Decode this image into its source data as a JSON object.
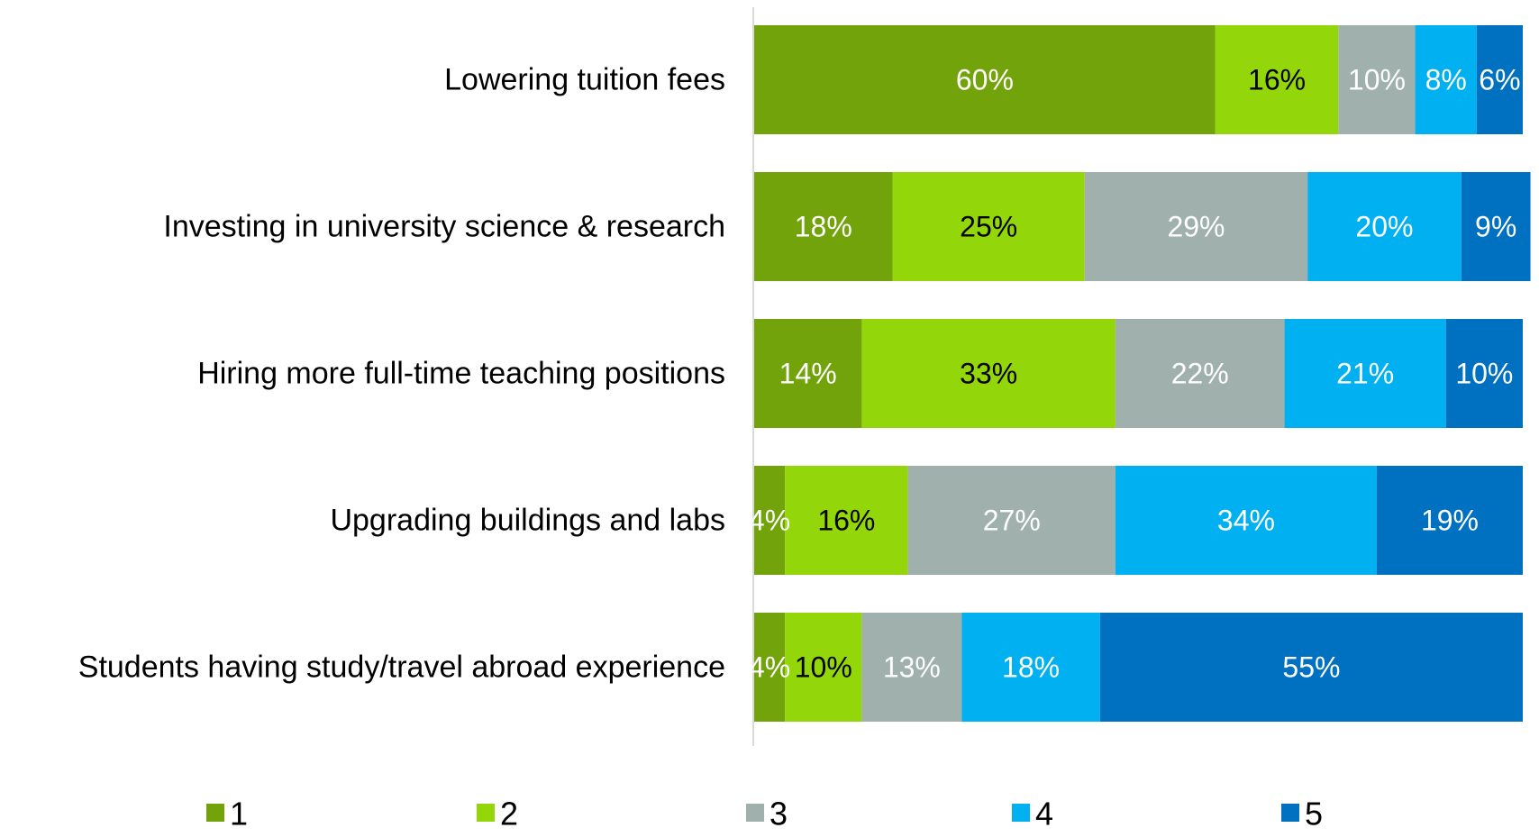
{
  "chart_data": {
    "type": "stacked_barh",
    "categories": [
      "Lowering tuition fees",
      "Investing in university science & research",
      "Hiring more full-time teaching positions",
      "Upgrading buildings and labs",
      "Students having study/travel abroad experience"
    ],
    "xlim": [
      0,
      100
    ],
    "legend": "bottom",
    "series": [
      {
        "name": "1",
        "color": "#72a30a",
        "label_color": "#ffffff",
        "values": [
          60,
          18,
          14,
          4,
          4
        ],
        "value_labels": [
          "60%",
          "18%",
          "14%",
          "4%",
          "4%"
        ]
      },
      {
        "name": "2",
        "color": "#93d60a",
        "label_color": "#000000",
        "values": [
          16,
          25,
          33,
          16,
          10
        ],
        "value_labels": [
          "16%",
          "25%",
          "33%",
          "16%",
          "10%"
        ]
      },
      {
        "name": "3",
        "color": "#9fb0ad",
        "label_color": "#ffffff",
        "values": [
          10,
          29,
          22,
          27,
          13
        ],
        "value_labels": [
          "10%",
          "29%",
          "22%",
          "27%",
          "13%"
        ]
      },
      {
        "name": "4",
        "color": "#00b0f0",
        "label_color": "#ffffff",
        "values": [
          8,
          20,
          21,
          34,
          18
        ],
        "value_labels": [
          "8%",
          "20%",
          "21%",
          "34%",
          "18%"
        ]
      },
      {
        "name": "5",
        "color": "#0070c0",
        "label_color": "#ffffff",
        "values": [
          6,
          9,
          10,
          19,
          55
        ],
        "value_labels": [
          "6%",
          "9%",
          "10%",
          "19%",
          "55%"
        ]
      }
    ]
  }
}
